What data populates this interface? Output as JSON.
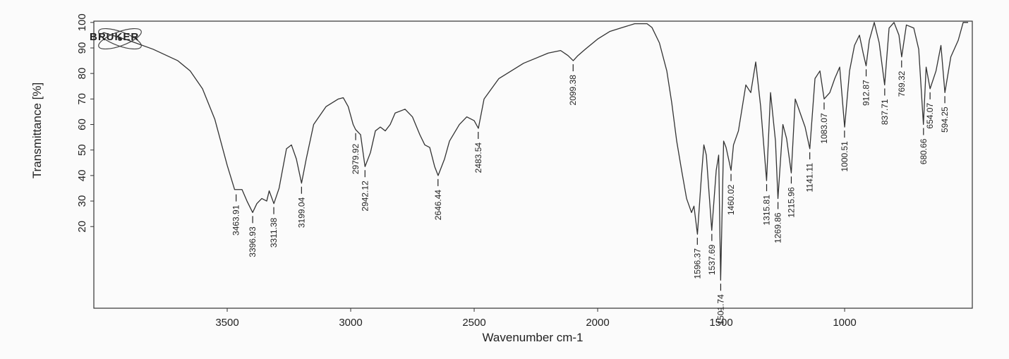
{
  "chart_data": {
    "type": "line",
    "logo": "BRUKER",
    "x_label": "Wavenumber cm-1",
    "y_label": "Transmittance [%]",
    "xlim": [
      4040,
      483
    ],
    "ylim": [
      -12,
      100.5
    ],
    "xticks": [
      3500,
      3000,
      2500,
      2000,
      1500,
      1000
    ],
    "yticks": [
      20,
      30,
      40,
      50,
      60,
      70,
      80,
      90,
      100
    ],
    "series": [
      {
        "color": "#333333",
        "x": [
          4020,
          4000,
          3900,
          3800,
          3700,
          3650,
          3600,
          3550,
          3500,
          3470,
          3440,
          3420,
          3397,
          3380,
          3360,
          3340,
          3330,
          3311,
          3290,
          3260,
          3240,
          3220,
          3199,
          3180,
          3150,
          3100,
          3050,
          3030,
          3010,
          2990,
          2980,
          2960,
          2942,
          2920,
          2900,
          2880,
          2860,
          2840,
          2820,
          2780,
          2750,
          2720,
          2700,
          2680,
          2660,
          2646,
          2620,
          2600,
          2560,
          2530,
          2500,
          2483,
          2460,
          2400,
          2300,
          2200,
          2150,
          2120,
          2099,
          2080,
          2050,
          2000,
          1950,
          1900,
          1850,
          1800,
          1780,
          1750,
          1720,
          1700,
          1680,
          1660,
          1640,
          1620,
          1610,
          1596,
          1580,
          1570,
          1560,
          1538,
          1520,
          1510,
          1502,
          1490,
          1480,
          1460,
          1450,
          1430,
          1400,
          1380,
          1360,
          1340,
          1316,
          1300,
          1280,
          1270,
          1250,
          1235,
          1216,
          1200,
          1180,
          1160,
          1141,
          1120,
          1100,
          1083,
          1060,
          1040,
          1020,
          1000,
          980,
          960,
          940,
          925,
          913,
          900,
          880,
          860,
          838,
          820,
          800,
          780,
          769,
          750,
          720,
          700,
          681,
          670,
          654,
          630,
          610,
          594,
          570,
          540,
          520,
          500
        ],
        "values": [
          95,
          96,
          93,
          89.5,
          85,
          81,
          74,
          62,
          44,
          34.5,
          34.5,
          30,
          25.5,
          29,
          31,
          30,
          34,
          29,
          35,
          50.5,
          52,
          46.5,
          37,
          46.5,
          60,
          67,
          70,
          70.5,
          67,
          60,
          58,
          56,
          43.5,
          49,
          57.5,
          59,
          57.5,
          60,
          64.5,
          66,
          63,
          56,
          52,
          51,
          43.5,
          40,
          46.5,
          53.5,
          60,
          63,
          61.5,
          58.5,
          70,
          78,
          84,
          88,
          89,
          87,
          85,
          87,
          89.5,
          93.5,
          96.5,
          98,
          99.5,
          99.5,
          98,
          92,
          81,
          68.5,
          53.5,
          42,
          31,
          25.5,
          28,
          17,
          39.5,
          52,
          48,
          18.5,
          42,
          48,
          -1,
          53.5,
          51,
          42,
          52,
          57.5,
          75.5,
          72.5,
          84.5,
          67,
          38,
          72.5,
          53.5,
          31,
          60,
          54.5,
          41,
          70,
          64.5,
          59,
          50.5,
          78,
          81,
          70,
          72.5,
          78,
          82.5,
          59,
          81,
          91,
          95,
          88,
          83,
          93,
          100,
          92,
          75.5,
          97.8,
          100,
          95,
          86.5,
          99,
          97.8,
          89.5,
          60,
          82.5,
          74,
          81,
          91,
          72.5,
          86.5,
          93,
          100,
          100
        ]
      }
    ],
    "peaks": {
      "x": [
        3463.91,
        3396.93,
        3311.38,
        3199.04,
        2979.92,
        2942.12,
        2646.44,
        2483.54,
        2099.38,
        1596.37,
        1537.69,
        1501.74,
        1460.02,
        1315.81,
        1269.86,
        1215.96,
        1141.11,
        1083.07,
        1000.51,
        912.87,
        837.71,
        769.32,
        680.66,
        654.07,
        594.25
      ],
      "values": [
        34,
        25.5,
        29,
        37,
        58,
        43.5,
        40,
        58.5,
        85,
        17,
        18.5,
        -1,
        42,
        38,
        31,
        41,
        50.5,
        70,
        59,
        83,
        75.5,
        86.5,
        60,
        74,
        72.5
      ]
    }
  }
}
